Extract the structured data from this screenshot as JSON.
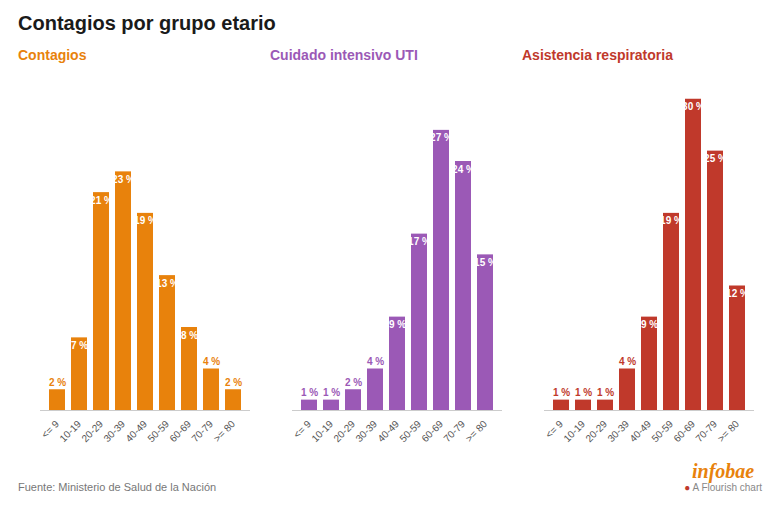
{
  "title": "Contagios por grupo etario",
  "annotations": [
    {
      "text": "Fuente: Ministerio de Salud de la Nación",
      "color": "#777777"
    },
    {
      "text": "infobae",
      "color": "#E8820C"
    },
    {
      "text": "●",
      "color": "#C0392B"
    },
    {
      "text": " A Flourish chart",
      "color": "#888888"
    }
  ],
  "chart_data": [
    {
      "type": "bar",
      "title": "Contagios",
      "color": "#E8820C",
      "categories": [
        "<= 9",
        "10-19",
        "20-29",
        "30-39",
        "40-49",
        "50-59",
        "60-69",
        "70-79",
        ">= 80"
      ],
      "values": [
        2,
        7,
        21,
        23,
        19,
        13,
        8,
        4,
        2
      ],
      "value_labels": [
        "2 %",
        "7 %",
        "21 %",
        "23 %",
        "19 %",
        "13 %",
        "8 %",
        "4 %",
        "2 %"
      ],
      "data_labels": true,
      "ylim": [
        0,
        32
      ],
      "tick_labels": "x",
      "grid": false
    },
    {
      "type": "bar",
      "title": "Cuidado intensivo UTI",
      "color": "#9B59B6",
      "categories": [
        "<= 9",
        "10-19",
        "20-29",
        "30-39",
        "40-49",
        "50-59",
        "60-69",
        "70-79",
        ">= 80"
      ],
      "values": [
        1,
        1,
        2,
        4,
        9,
        17,
        27,
        24,
        15
      ],
      "value_labels": [
        "1 %",
        "1 %",
        "2 %",
        "4 %",
        "9 %",
        "17 %",
        "27 %",
        "24 %",
        "15 %"
      ],
      "data_labels": true,
      "ylim": [
        0,
        32
      ],
      "tick_labels": "x",
      "grid": false
    },
    {
      "type": "bar",
      "title": "Asistencia respiratoria",
      "color": "#C0392B",
      "categories": [
        "<= 9",
        "10-19",
        "20-29",
        "30-39",
        "40-49",
        "50-59",
        "60-69",
        "70-79",
        ">= 80"
      ],
      "values": [
        1,
        1,
        1,
        4,
        9,
        19,
        30,
        25,
        12
      ],
      "value_labels": [
        "1 %",
        "1 %",
        "1 %",
        "4 %",
        "9 %",
        "19 %",
        "30 %",
        "25 %",
        "12 %"
      ],
      "data_labels": true,
      "ylim": [
        0,
        32
      ],
      "tick_labels": "x",
      "grid": false
    }
  ]
}
